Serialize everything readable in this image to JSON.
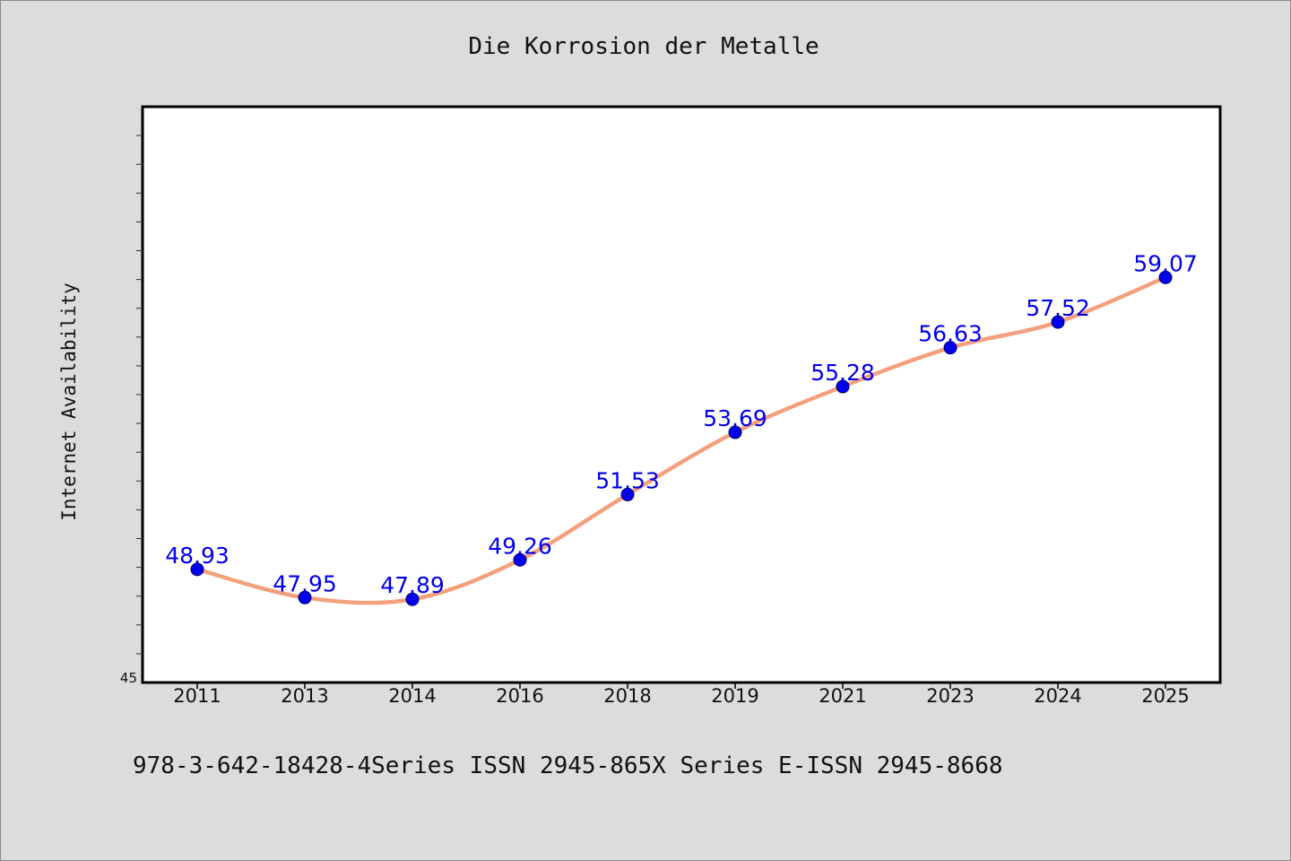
{
  "chart_data": {
    "type": "line",
    "title": "Die Korrosion der Metalle",
    "xlabel": "",
    "ylabel": "Internet Availability",
    "categories": [
      "2011",
      "2013",
      "2014",
      "2016",
      "2018",
      "2019",
      "2021",
      "2023",
      "2024",
      "2025"
    ],
    "series": [
      {
        "values": [
          48.93,
          47.95,
          47.89,
          49.26,
          51.53,
          53.69,
          55.28,
          56.63,
          57.52,
          59.07
        ]
      }
    ],
    "ylim": [
      45,
      65
    ],
    "yticks": [
      45
    ],
    "grid": false,
    "legend": "none",
    "line_color": "#f4a07d",
    "marker_color": "#0000ee",
    "label_color": "#0000ee"
  },
  "footer_text": "978-3-642-18428-4Series ISSN 2945-865X Series E-ISSN 2945-8668"
}
